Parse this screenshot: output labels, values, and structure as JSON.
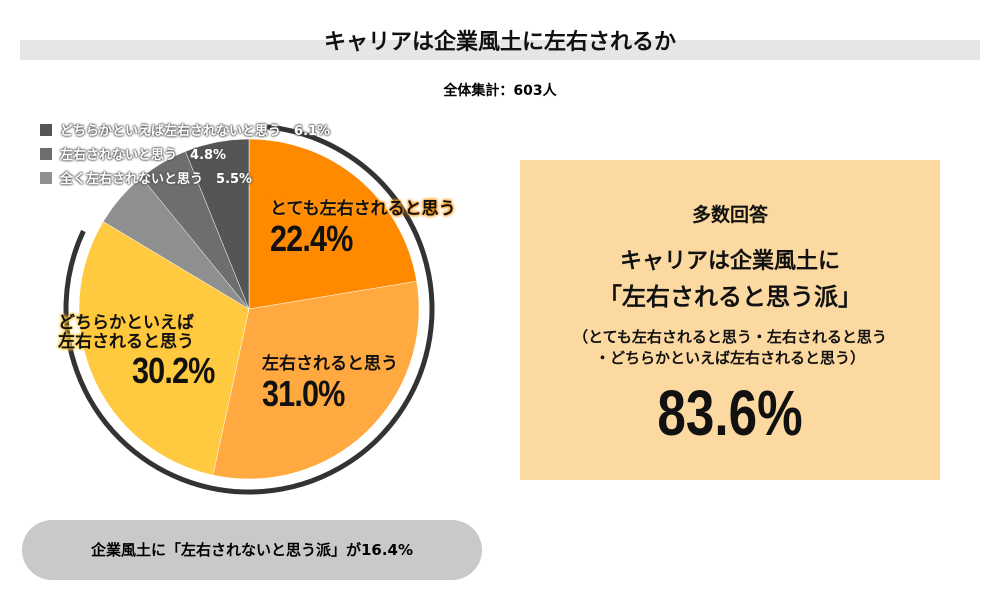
{
  "title": "キャリアは企業風土に左右されるか",
  "total": "全体集計：603人",
  "chart_data": {
    "type": "pie",
    "start": "top",
    "direction": "clockwise",
    "slices": [
      {
        "label": "とても左右されると思う",
        "value": 22.4,
        "display": "22.4%",
        "color": "#FF8A00"
      },
      {
        "label": "左右されると思う",
        "value": 31.0,
        "display": "31.0%",
        "color": "#FFA940"
      },
      {
        "label": "どちらかといえば左右されると思う",
        "value": 30.2,
        "display": "30.2%",
        "color": "#FFC940"
      },
      {
        "label": "全く左右されないと思う",
        "value": 5.5,
        "display": "5.5%",
        "color": "#8F8F8F"
      },
      {
        "label": "左右されないと思う",
        "value": 4.8,
        "display": "4.8%",
        "color": "#6E6E6E"
      },
      {
        "label": "どちらかといえば左右されないと思う",
        "value": 6.1,
        "display": "6.1%",
        "color": "#555555"
      }
    ],
    "label_lines": {
      "dochira_line1": "どちらかといえば",
      "dochira_line2": "左右されると思う"
    }
  },
  "summary": {
    "heading": "多数回答",
    "line1": "キャリアは企業風土に",
    "line2": "「左右されると思う派」",
    "note1": "（とても左右されると思う・左右されると思う",
    "note2": "・どちらかといえば左右されると思う）",
    "value": "83.6%"
  },
  "footer": "企業風土に「左右されないと思う派」が16.4%"
}
